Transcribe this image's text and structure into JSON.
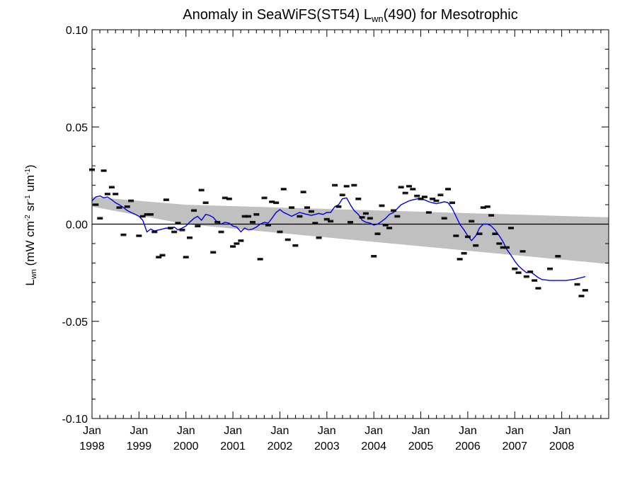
{
  "chart_data": {
    "type": "line",
    "title_prefix": "Anomaly in SeaWiFS(ST54) L",
    "title_sub": "wn",
    "title_suffix": "(490) for Mesotrophic",
    "ylabel_main": "L",
    "ylabel_main_sub": "wn",
    "ylabel_units_parts": [
      " (mW cm",
      "-2",
      " sr",
      "-1",
      " um",
      "-1",
      ")"
    ],
    "xlim": [
      1998.0,
      2009.0
    ],
    "ylim": [
      -0.1,
      0.1
    ],
    "y_ticks": [
      {
        "value": 0.1,
        "label": "0.10"
      },
      {
        "value": 0.05,
        "label": "0.05"
      },
      {
        "value": 0.0,
        "label": "0.00"
      },
      {
        "value": -0.05,
        "label": "-0.05"
      },
      {
        "value": -0.1,
        "label": "-0.10"
      }
    ],
    "x_ticks": [
      {
        "value": 1998,
        "month": "Jan",
        "year": "1998"
      },
      {
        "value": 1999,
        "month": "Jan",
        "year": "1999"
      },
      {
        "value": 2000,
        "month": "Jan",
        "year": "2000"
      },
      {
        "value": 2001,
        "month": "Jan",
        "year": "2001"
      },
      {
        "value": 2002,
        "month": "Jan",
        "year": "2002"
      },
      {
        "value": 2003,
        "month": "Jan",
        "year": "2003"
      },
      {
        "value": 2004,
        "month": "Jan",
        "year": "2004"
      },
      {
        "value": 2005,
        "month": "Jan",
        "year": "2005"
      },
      {
        "value": 2006,
        "month": "Jan",
        "year": "2006"
      },
      {
        "value": 2007,
        "month": "Jan",
        "year": "2007"
      },
      {
        "value": 2008,
        "month": "Jan",
        "year": "2008"
      }
    ],
    "zero_line": 0.0,
    "confidence_band": {
      "x": [
        1998.0,
        2000.0,
        2009.0
      ],
      "upper": [
        0.014,
        0.01,
        0.0035
      ],
      "lower": [
        0.009,
        0.0,
        -0.0205
      ]
    },
    "monthly_anomalies": [
      {
        "x": 1998.0,
        "y": 0.028
      },
      {
        "x": 1998.08,
        "y": 0.01
      },
      {
        "x": 1998.17,
        "y": 0.003
      },
      {
        "x": 1998.25,
        "y": 0.0275
      },
      {
        "x": 1998.33,
        "y": 0.0155
      },
      {
        "x": 1998.42,
        "y": 0.019
      },
      {
        "x": 1998.5,
        "y": 0.0155
      },
      {
        "x": 1998.58,
        "y": 0.0085
      },
      {
        "x": 1998.67,
        "y": -0.0055
      },
      {
        "x": 1998.75,
        "y": 0.009
      },
      {
        "x": 1998.83,
        "y": 0.012
      },
      {
        "x": 1999.0,
        "y": -0.006
      },
      {
        "x": 1999.08,
        "y": 0.004
      },
      {
        "x": 1999.17,
        "y": 0.005
      },
      {
        "x": 1999.25,
        "y": 0.005
      },
      {
        "x": 1999.33,
        "y": -0.004
      },
      {
        "x": 1999.42,
        "y": -0.017
      },
      {
        "x": 1999.5,
        "y": -0.016
      },
      {
        "x": 1999.58,
        "y": 0.0125
      },
      {
        "x": 1999.67,
        "y": -0.002
      },
      {
        "x": 1999.75,
        "y": -0.004
      },
      {
        "x": 1999.83,
        "y": 0.0005
      },
      {
        "x": 1999.92,
        "y": -0.003
      },
      {
        "x": 2000.0,
        "y": -0.017
      },
      {
        "x": 2000.08,
        "y": -0.007
      },
      {
        "x": 2000.17,
        "y": 0.007
      },
      {
        "x": 2000.25,
        "y": -0.001
      },
      {
        "x": 2000.33,
        "y": 0.0175
      },
      {
        "x": 2000.42,
        "y": 0.011
      },
      {
        "x": 2000.58,
        "y": -0.0145
      },
      {
        "x": 2000.67,
        "y": 0.001
      },
      {
        "x": 2000.75,
        "y": -0.004
      },
      {
        "x": 2000.83,
        "y": 0.0135
      },
      {
        "x": 2000.92,
        "y": 0.013
      },
      {
        "x": 2001.0,
        "y": -0.0115
      },
      {
        "x": 2001.08,
        "y": -0.01
      },
      {
        "x": 2001.17,
        "y": -0.0085
      },
      {
        "x": 2001.25,
        "y": 0.004
      },
      {
        "x": 2001.33,
        "y": 0.004
      },
      {
        "x": 2001.42,
        "y": 0.001
      },
      {
        "x": 2001.5,
        "y": 0.005
      },
      {
        "x": 2001.58,
        "y": -0.018
      },
      {
        "x": 2001.67,
        "y": 0.0135
      },
      {
        "x": 2001.75,
        "y": -0.0005
      },
      {
        "x": 2001.83,
        "y": 0.0115
      },
      {
        "x": 2001.92,
        "y": 0.011
      },
      {
        "x": 2002.0,
        "y": -0.004
      },
      {
        "x": 2002.08,
        "y": 0.018
      },
      {
        "x": 2002.17,
        "y": -0.008
      },
      {
        "x": 2002.25,
        "y": 0.0085
      },
      {
        "x": 2002.33,
        "y": -0.011
      },
      {
        "x": 2002.42,
        "y": 0.004
      },
      {
        "x": 2002.5,
        "y": 0.0165
      },
      {
        "x": 2002.58,
        "y": 0.0085
      },
      {
        "x": 2002.67,
        "y": 0.0065
      },
      {
        "x": 2002.75,
        "y": 0.0005
      },
      {
        "x": 2002.83,
        "y": -0.007
      },
      {
        "x": 2003.0,
        "y": 0.0025
      },
      {
        "x": 2003.08,
        "y": 0.0015
      },
      {
        "x": 2003.17,
        "y": 0.02
      },
      {
        "x": 2003.25,
        "y": 0.009
      },
      {
        "x": 2003.33,
        "y": 0.015
      },
      {
        "x": 2003.42,
        "y": 0.0195
      },
      {
        "x": 2003.5,
        "y": 0.001
      },
      {
        "x": 2003.58,
        "y": 0.02
      },
      {
        "x": 2003.67,
        "y": 0.013
      },
      {
        "x": 2003.75,
        "y": 0.0035
      },
      {
        "x": 2003.83,
        "y": 0.0055
      },
      {
        "x": 2003.92,
        "y": 0.003
      },
      {
        "x": 2004.0,
        "y": -0.0165
      },
      {
        "x": 2004.08,
        "y": -0.005
      },
      {
        "x": 2004.17,
        "y": 0.0095
      },
      {
        "x": 2004.25,
        "y": -0.0005
      },
      {
        "x": 2004.33,
        "y": -0.002
      },
      {
        "x": 2004.42,
        "y": 0.007
      },
      {
        "x": 2004.5,
        "y": 0.004
      },
      {
        "x": 2004.58,
        "y": 0.019
      },
      {
        "x": 2004.67,
        "y": 0.016
      },
      {
        "x": 2004.75,
        "y": 0.0195
      },
      {
        "x": 2004.83,
        "y": 0.018
      },
      {
        "x": 2004.92,
        "y": 0.0145
      },
      {
        "x": 2005.0,
        "y": 0.013
      },
      {
        "x": 2005.08,
        "y": 0.014
      },
      {
        "x": 2005.17,
        "y": 0.006
      },
      {
        "x": 2005.25,
        "y": 0.013
      },
      {
        "x": 2005.33,
        "y": 0.012
      },
      {
        "x": 2005.42,
        "y": 0.015
      },
      {
        "x": 2005.5,
        "y": 0.003
      },
      {
        "x": 2005.58,
        "y": 0.018
      },
      {
        "x": 2005.67,
        "y": 0.011
      },
      {
        "x": 2005.75,
        "y": -0.006
      },
      {
        "x": 2005.83,
        "y": -0.018
      },
      {
        "x": 2005.92,
        "y": -0.015
      },
      {
        "x": 2006.0,
        "y": -0.0065
      },
      {
        "x": 2006.08,
        "y": 0.0015
      },
      {
        "x": 2006.17,
        "y": -0.011
      },
      {
        "x": 2006.25,
        "y": -0.005
      },
      {
        "x": 2006.33,
        "y": 0.0085
      },
      {
        "x": 2006.42,
        "y": 0.009
      },
      {
        "x": 2006.5,
        "y": 0.0045
      },
      {
        "x": 2006.58,
        "y": -0.005
      },
      {
        "x": 2006.67,
        "y": -0.01
      },
      {
        "x": 2006.75,
        "y": -0.012
      },
      {
        "x": 2006.83,
        "y": -0.012
      },
      {
        "x": 2006.92,
        "y": -0.002
      },
      {
        "x": 2007.0,
        "y": -0.023
      },
      {
        "x": 2007.08,
        "y": -0.025
      },
      {
        "x": 2007.17,
        "y": -0.014
      },
      {
        "x": 2007.25,
        "y": -0.027
      },
      {
        "x": 2007.33,
        "y": -0.0245
      },
      {
        "x": 2007.42,
        "y": -0.029
      },
      {
        "x": 2007.5,
        "y": -0.033
      },
      {
        "x": 2007.75,
        "y": -0.023
      },
      {
        "x": 2007.92,
        "y": -0.0165
      },
      {
        "x": 2008.33,
        "y": -0.031
      },
      {
        "x": 2008.42,
        "y": -0.037
      },
      {
        "x": 2008.5,
        "y": -0.034
      }
    ],
    "smoothed_series": {
      "color": "#0000dd",
      "points": [
        [
          1998.0,
          0.012
        ],
        [
          1998.08,
          0.014
        ],
        [
          1998.17,
          0.0145
        ],
        [
          1998.25,
          0.0135
        ],
        [
          1998.33,
          0.014
        ],
        [
          1998.42,
          0.0125
        ],
        [
          1998.5,
          0.011
        ],
        [
          1998.58,
          0.01
        ],
        [
          1998.67,
          0.0085
        ],
        [
          1998.75,
          0.007
        ],
        [
          1998.83,
          0.006
        ],
        [
          1998.92,
          0.005
        ],
        [
          1999.0,
          0.004
        ],
        [
          1999.08,
          0.002
        ],
        [
          1999.17,
          -0.004
        ],
        [
          1999.25,
          -0.0025
        ],
        [
          1999.33,
          -0.0035
        ],
        [
          1999.42,
          -0.003
        ],
        [
          1999.5,
          -0.0025
        ],
        [
          1999.58,
          -0.002
        ],
        [
          1999.67,
          -0.0025
        ],
        [
          1999.75,
          -0.0015
        ],
        [
          1999.83,
          -0.003
        ],
        [
          1999.92,
          -0.002
        ],
        [
          2000.0,
          -0.001
        ],
        [
          2000.08,
          0.001
        ],
        [
          2000.17,
          0.003
        ],
        [
          2000.25,
          0.004
        ],
        [
          2000.33,
          0.002
        ],
        [
          2000.42,
          0.005
        ],
        [
          2000.5,
          0.0045
        ],
        [
          2000.58,
          0.0035
        ],
        [
          2000.67,
          0.001
        ],
        [
          2000.75,
          0.0
        ],
        [
          2000.83,
          0.001
        ],
        [
          2000.92,
          0.0005
        ],
        [
          2001.0,
          -0.001
        ],
        [
          2001.08,
          -0.0015
        ],
        [
          2001.17,
          -0.004
        ],
        [
          2001.25,
          -0.002
        ],
        [
          2001.33,
          -0.003
        ],
        [
          2001.42,
          -0.0025
        ],
        [
          2001.5,
          -0.0015
        ],
        [
          2001.58,
          0.0
        ],
        [
          2001.67,
          0.001
        ],
        [
          2001.75,
          0.0005
        ],
        [
          2001.83,
          0.003
        ],
        [
          2001.92,
          0.006
        ],
        [
          2002.0,
          0.0075
        ],
        [
          2002.08,
          0.006
        ],
        [
          2002.17,
          0.005
        ],
        [
          2002.25,
          0.004
        ],
        [
          2002.33,
          0.005
        ],
        [
          2002.42,
          0.006
        ],
        [
          2002.5,
          0.0055
        ],
        [
          2002.58,
          0.005
        ],
        [
          2002.67,
          0.0045
        ],
        [
          2002.75,
          0.005
        ],
        [
          2002.83,
          0.0055
        ],
        [
          2002.92,
          0.005
        ],
        [
          2003.0,
          0.006
        ],
        [
          2003.08,
          0.006
        ],
        [
          2003.17,
          0.009
        ],
        [
          2003.25,
          0.01
        ],
        [
          2003.33,
          0.013
        ],
        [
          2003.42,
          0.0135
        ],
        [
          2003.5,
          0.01
        ],
        [
          2003.58,
          0.007
        ],
        [
          2003.67,
          0.005
        ],
        [
          2003.75,
          0.002
        ],
        [
          2003.83,
          0.001
        ],
        [
          2003.92,
          0.0005
        ],
        [
          2004.0,
          -0.0005
        ],
        [
          2004.08,
          0.0
        ],
        [
          2004.17,
          0.0015
        ],
        [
          2004.25,
          0.003
        ],
        [
          2004.33,
          0.005
        ],
        [
          2004.42,
          0.006
        ],
        [
          2004.5,
          0.008
        ],
        [
          2004.58,
          0.01
        ],
        [
          2004.67,
          0.011
        ],
        [
          2004.75,
          0.012
        ],
        [
          2004.83,
          0.0125
        ],
        [
          2004.92,
          0.013
        ],
        [
          2005.0,
          0.013
        ],
        [
          2005.08,
          0.0125
        ],
        [
          2005.17,
          0.0115
        ],
        [
          2005.25,
          0.011
        ],
        [
          2005.33,
          0.0105
        ],
        [
          2005.42,
          0.011
        ],
        [
          2005.5,
          0.0115
        ],
        [
          2005.58,
          0.011
        ],
        [
          2005.67,
          0.008
        ],
        [
          2005.75,
          0.004
        ],
        [
          2005.83,
          0.0
        ],
        [
          2005.92,
          -0.003
        ],
        [
          2006.0,
          -0.006
        ],
        [
          2006.08,
          -0.0085
        ],
        [
          2006.17,
          -0.006
        ],
        [
          2006.25,
          -0.002
        ],
        [
          2006.33,
          0.0
        ],
        [
          2006.42,
          0.0
        ],
        [
          2006.5,
          -0.001
        ],
        [
          2006.58,
          -0.003
        ],
        [
          2006.67,
          -0.006
        ],
        [
          2006.75,
          -0.009
        ],
        [
          2006.83,
          -0.013
        ],
        [
          2006.92,
          -0.016
        ],
        [
          2007.0,
          -0.019
        ],
        [
          2007.08,
          -0.0215
        ],
        [
          2007.17,
          -0.0235
        ],
        [
          2007.25,
          -0.025
        ],
        [
          2007.33,
          -0.0245
        ],
        [
          2007.42,
          -0.026
        ],
        [
          2007.5,
          -0.0275
        ],
        [
          2007.58,
          -0.0285
        ],
        [
          2007.75,
          -0.029
        ],
        [
          2007.92,
          -0.029
        ],
        [
          2008.08,
          -0.029
        ],
        [
          2008.25,
          -0.0285
        ],
        [
          2008.42,
          -0.0275
        ],
        [
          2008.5,
          -0.027
        ]
      ]
    },
    "colors": {
      "band": "#c0c0c0",
      "smoothed": "#0000dd",
      "points": "#000000",
      "axis": "#000000"
    },
    "grid": false,
    "legend": "none"
  }
}
